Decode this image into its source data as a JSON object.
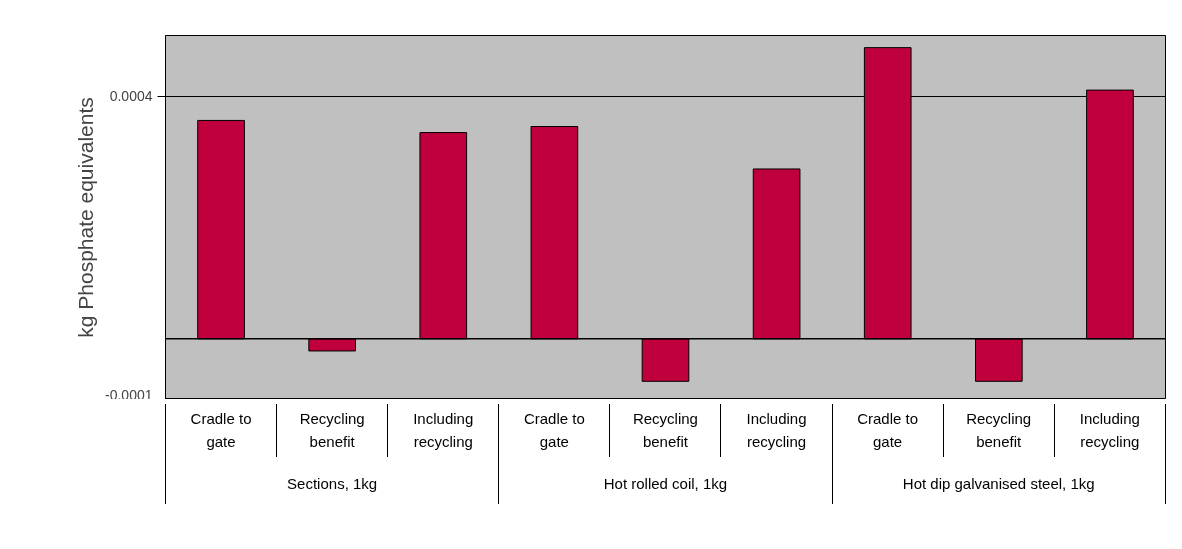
{
  "chart_data": {
    "type": "bar",
    "ylabel": "kg Phosphate equivalents",
    "categories": [
      "Cradle to gate",
      "Recycling benefit",
      "Including recycling",
      "Cradle to gate",
      "Recycling benefit",
      "Including recycling",
      "Cradle to gate",
      "Recycling benefit",
      "Including recycling"
    ],
    "values": [
      0.00036,
      -2e-05,
      0.00034,
      0.00035,
      -7e-05,
      0.00028,
      0.00048,
      -7e-05,
      0.00041
    ],
    "color": "#c0003c",
    "ylim": [
      -0.0001,
      0.0005
    ],
    "yticks": [
      {
        "value": -0.0001,
        "label": "-0.0001"
      },
      {
        "value": 0.0004,
        "label": "0.0004"
      }
    ],
    "grid": "y",
    "annotations": [
      "Sections, 1kg",
      "Hot rolled coil, 1kg",
      "Hot dip galvanised steel, 1kg"
    ]
  }
}
